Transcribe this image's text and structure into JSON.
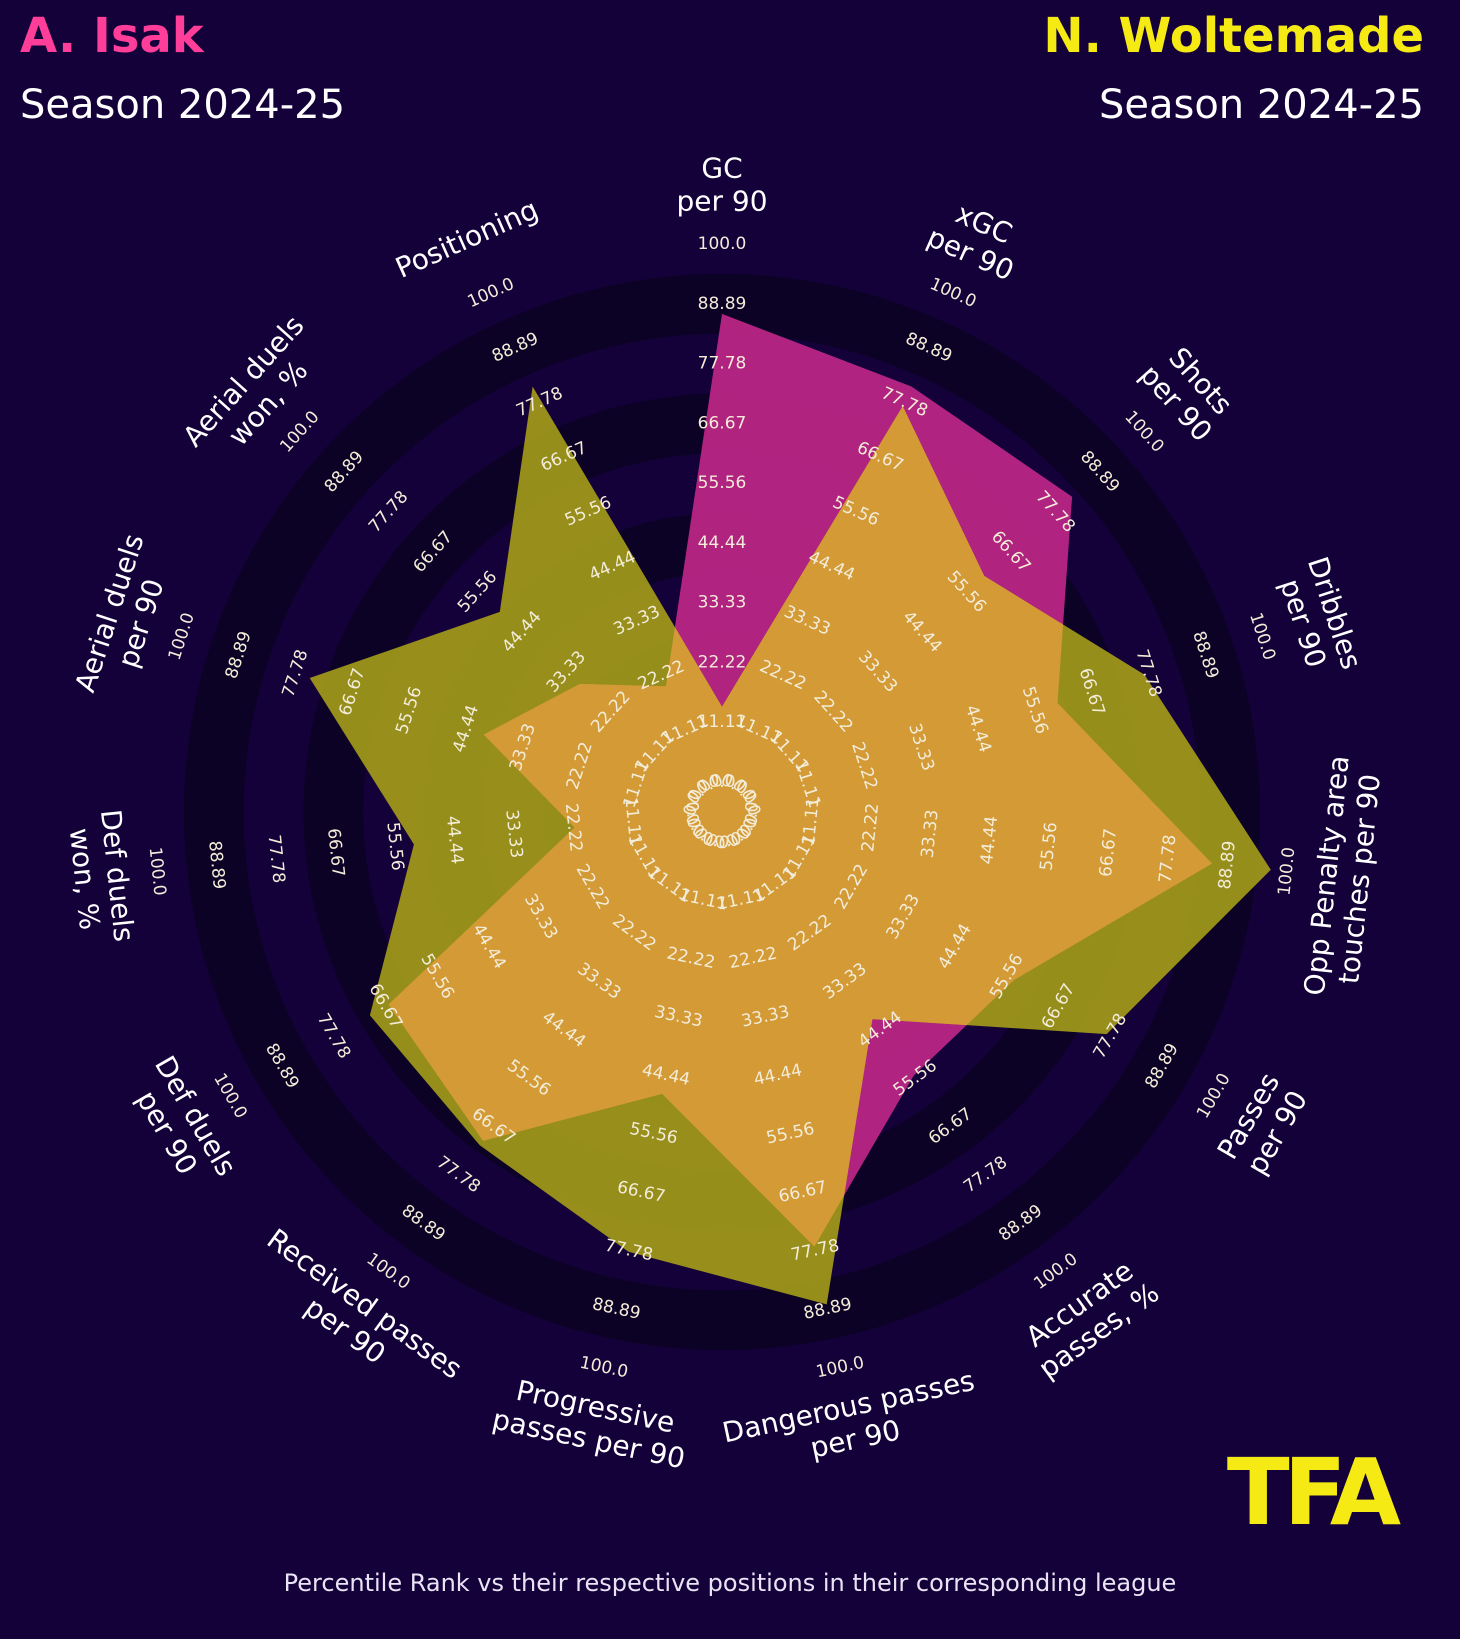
{
  "header": {
    "player1": {
      "name": "A. Isak",
      "season": "Season 2024-25"
    },
    "player2": {
      "name": "N. Woltemade",
      "season": "Season 2024-25"
    }
  },
  "footer": {
    "note": "Percentile Rank vs their respective positions in their corresponding league",
    "logo_text": "TFA"
  },
  "colors": {
    "background": "#14013a",
    "player1": "#c2278a",
    "player2": "#a39a1a",
    "overlap": "#d39a36",
    "ring_dark": "#0c0225",
    "ring_light": "#14013a",
    "player1_title": "#ff3e9a",
    "player2_title": "#f5ea14",
    "logo": "#f5ea14"
  },
  "chart_data": {
    "type": "radar",
    "title": "A. Isak vs N. Woltemade",
    "rings": [
      "0.0",
      "11.11",
      "22.22",
      "33.33",
      "44.44",
      "55.56",
      "66.67",
      "77.78",
      "88.89",
      "100.0"
    ],
    "range": [
      0,
      100
    ],
    "params": [
      {
        "label": "GC\nper 90"
      },
      {
        "label": "xGC\nper 90"
      },
      {
        "label": "Shots\nper 90"
      },
      {
        "label": "Dribbles\nper 90"
      },
      {
        "label": "Opp Penalty area\ntouches per 90"
      },
      {
        "label": "Passes\nper 90"
      },
      {
        "label": "Accurate\npasses, %"
      },
      {
        "label": "Dangerous passes\nper 90"
      },
      {
        "label": "Progressive\npasses per 90"
      },
      {
        "label": "Received passes\nper 90"
      },
      {
        "label": "Def duels\nper 90"
      },
      {
        "label": "Def duels\nwon, %"
      },
      {
        "label": "Aerial duels\nper 90"
      },
      {
        "label": "Aerial duels\nwon, %"
      },
      {
        "label": "Positioning"
      }
    ],
    "series": [
      {
        "name": "A. Isak",
        "values": [
          87,
          81,
          82,
          60,
          86,
          57,
          55,
          77,
          48,
          70,
          66,
          22,
          41,
          30,
          20
        ]
      },
      {
        "name": "N. Woltemade",
        "values": [
          14,
          77,
          60,
          77,
          97,
          77,
          42,
          88,
          78,
          71,
          70,
          52,
          75,
          50,
          81
        ]
      }
    ]
  }
}
